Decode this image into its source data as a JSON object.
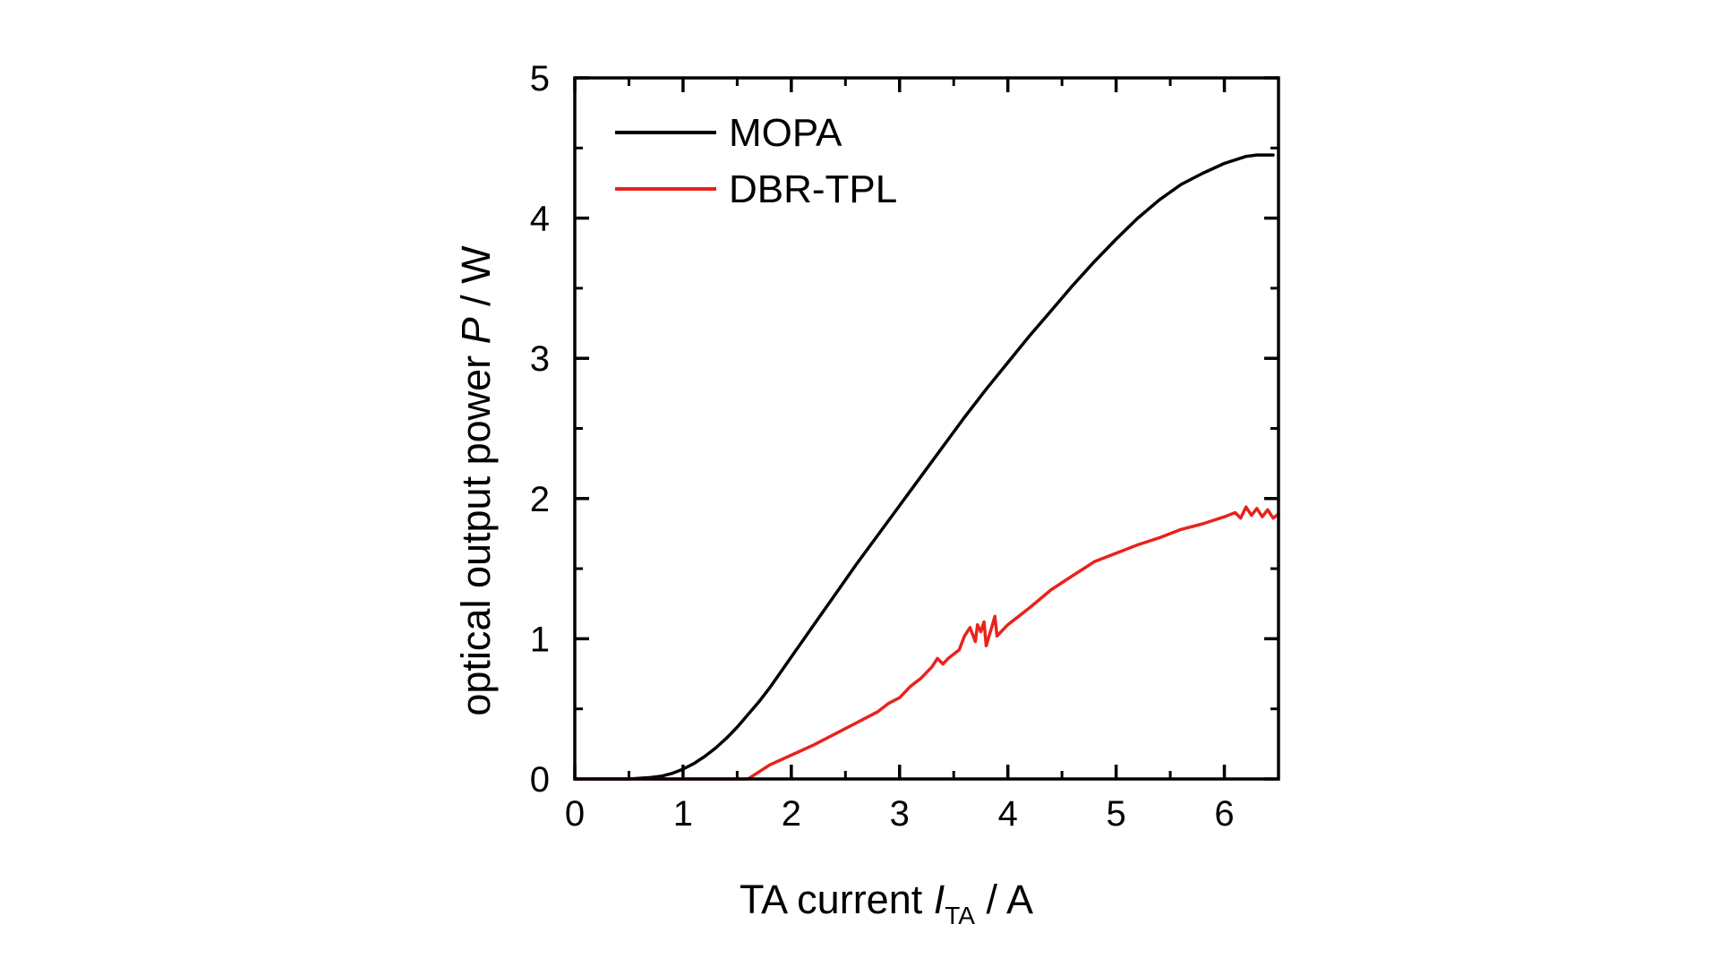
{
  "chart_data": {
    "type": "line",
    "xlabel": {
      "pre": "TA current ",
      "var": "I",
      "sub": "TA",
      "post": " / A"
    },
    "ylabel": {
      "pre": "optical output power ",
      "var": "P",
      "post": " / W"
    },
    "xlim": [
      0,
      6.5
    ],
    "ylim": [
      0,
      5
    ],
    "xticks": [
      0,
      1,
      2,
      3,
      4,
      5,
      6
    ],
    "yticks": [
      0,
      1,
      2,
      3,
      4,
      5
    ],
    "grid": false,
    "legend_position": "top-left",
    "series": [
      {
        "name": "MOPA",
        "color": "#000000",
        "x": [
          0.15,
          0.5,
          0.7,
          0.8,
          0.9,
          1.0,
          1.1,
          1.2,
          1.3,
          1.4,
          1.5,
          1.6,
          1.7,
          1.8,
          1.9,
          2.0,
          2.2,
          2.4,
          2.6,
          2.8,
          3.0,
          3.2,
          3.4,
          3.6,
          3.8,
          4.0,
          4.2,
          4.4,
          4.6,
          4.8,
          5.0,
          5.2,
          5.4,
          5.6,
          5.8,
          6.0,
          6.2,
          6.3,
          6.45
        ],
        "y": [
          0.0,
          0.0,
          0.01,
          0.02,
          0.04,
          0.07,
          0.11,
          0.16,
          0.22,
          0.29,
          0.37,
          0.46,
          0.55,
          0.65,
          0.76,
          0.87,
          1.09,
          1.31,
          1.53,
          1.74,
          1.95,
          2.16,
          2.37,
          2.58,
          2.78,
          2.97,
          3.16,
          3.34,
          3.52,
          3.69,
          3.85,
          4.0,
          4.13,
          4.24,
          4.32,
          4.39,
          4.44,
          4.45,
          4.45
        ]
      },
      {
        "name": "DBR-TPL",
        "color": "#e8231b",
        "x": [
          0.0,
          1.6,
          1.7,
          1.8,
          2.0,
          2.2,
          2.4,
          2.6,
          2.8,
          2.9,
          3.0,
          3.1,
          3.2,
          3.3,
          3.35,
          3.4,
          3.45,
          3.55,
          3.6,
          3.65,
          3.7,
          3.72,
          3.75,
          3.78,
          3.8,
          3.85,
          3.88,
          3.9,
          3.95,
          4.0,
          4.2,
          4.4,
          4.6,
          4.8,
          5.0,
          5.2,
          5.4,
          5.6,
          5.8,
          6.0,
          6.1,
          6.15,
          6.2,
          6.25,
          6.3,
          6.35,
          6.4,
          6.45,
          6.5
        ],
        "y": [
          0.0,
          0.0,
          0.05,
          0.1,
          0.17,
          0.24,
          0.32,
          0.4,
          0.48,
          0.54,
          0.58,
          0.66,
          0.72,
          0.8,
          0.86,
          0.82,
          0.86,
          0.92,
          1.02,
          1.08,
          0.98,
          1.1,
          1.05,
          1.12,
          0.95,
          1.08,
          1.16,
          1.02,
          1.06,
          1.1,
          1.22,
          1.35,
          1.45,
          1.55,
          1.61,
          1.67,
          1.72,
          1.78,
          1.82,
          1.87,
          1.9,
          1.86,
          1.94,
          1.88,
          1.93,
          1.87,
          1.92,
          1.86,
          1.89
        ]
      }
    ]
  }
}
